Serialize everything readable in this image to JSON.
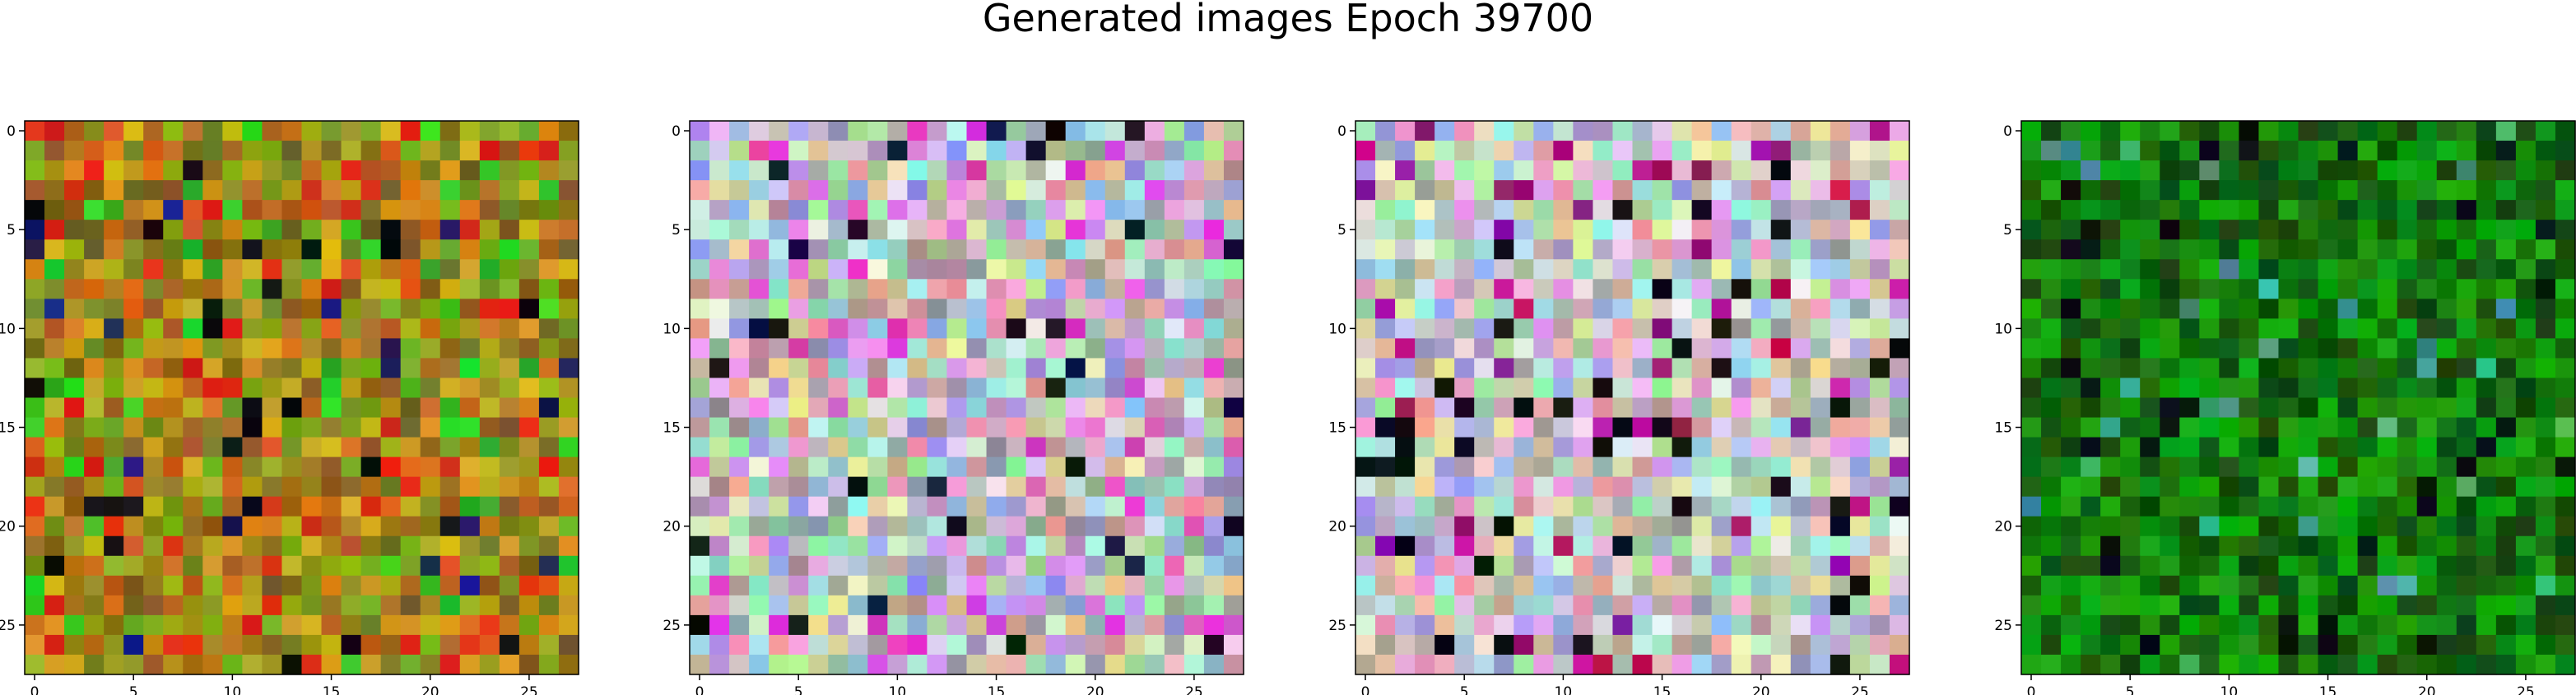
{
  "figure": {
    "title": "Generated images Epoch 39700"
  },
  "chart_data": [
    {
      "type": "heatmap",
      "grid_size": 28,
      "palette": "warm-olive",
      "xticks": [
        0,
        5,
        10,
        15,
        20,
        25
      ],
      "yticks": [
        0,
        5,
        10,
        15,
        20,
        25
      ],
      "xlim": [
        -0.5,
        27.5
      ],
      "ylim": [
        27.5,
        -0.5
      ],
      "title": ""
    },
    {
      "type": "heatmap",
      "grid_size": 28,
      "palette": "pastel",
      "xticks": [
        0,
        5,
        10,
        15,
        20,
        25
      ],
      "yticks": [
        0,
        5,
        10,
        15,
        20,
        25
      ],
      "xlim": [
        -0.5,
        27.5
      ],
      "ylim": [
        27.5,
        -0.5
      ],
      "title": ""
    },
    {
      "type": "heatmap",
      "grid_size": 28,
      "palette": "pastel-dark",
      "xticks": [
        0,
        5,
        10,
        15,
        20,
        25
      ],
      "yticks": [
        0,
        5,
        10,
        15,
        20,
        25
      ],
      "xlim": [
        -0.5,
        27.5
      ],
      "ylim": [
        27.5,
        -0.5
      ],
      "title": ""
    },
    {
      "type": "heatmap",
      "grid_size": 28,
      "palette": "green",
      "xticks": [
        0,
        5,
        10,
        15,
        20,
        25
      ],
      "yticks": [
        0,
        5,
        10,
        15,
        20,
        25
      ],
      "xlim": [
        -0.5,
        27.5
      ],
      "ylim": [
        27.5,
        -0.5
      ],
      "title": ""
    }
  ]
}
